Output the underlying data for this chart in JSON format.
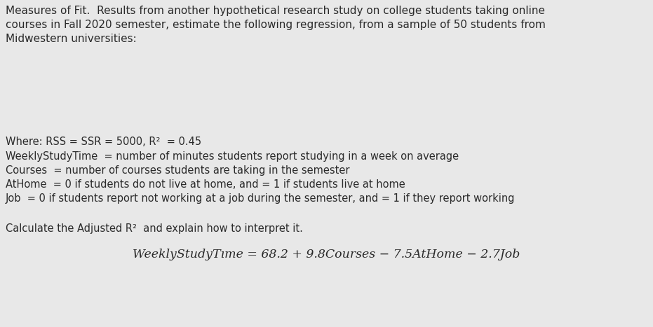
{
  "bg_color": "#e8e8e8",
  "text_color": "#2a2a2a",
  "para1_line1": "Measures of Fit.  Results from another hypothetical research study on college students taking online",
  "para1_line2": "courses in Fall 2020 semester, estimate the following regression, from a sample of 50 students from",
  "para1_line3": "Midwestern universities:",
  "line1": "Where: RSS = SSR = 5000, R²  = 0.45",
  "line2": "WeeklyStudyTime  = number of minutes students report studying in a week on average",
  "line3": "Courses  = number of courses students are taking in the semester",
  "line4": "AtHome  = 0 if students do not live at home, and = 1 if students live at home",
  "line5": "Job  = 0 if students report not working at a job during the semester, and = 1 if they report working",
  "line6": "Calculate the Adjusted R²  and explain how to interpret it.",
  "equation": "WeeklyStudyTıme = 68.2 + 9.8Courses − 7.5AtHome − 2.7Job",
  "para1_fontsize": 11.0,
  "body_fontsize": 10.5,
  "eq_fontsize": 12.5
}
